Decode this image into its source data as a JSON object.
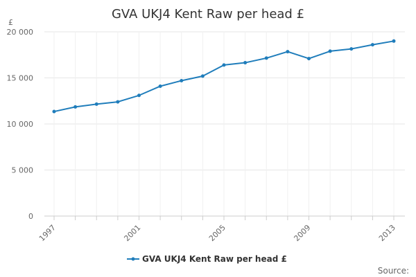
{
  "chart_data": {
    "type": "line",
    "title": "GVA UKJ4 Kent Raw per head £",
    "unit_label": "£",
    "xlabel": "",
    "ylabel": "",
    "x": [
      1997,
      1998,
      1999,
      2000,
      2001,
      2002,
      2003,
      2004,
      2005,
      2006,
      2007,
      2008,
      2009,
      2010,
      2011,
      2012,
      2013
    ],
    "x_ticks": [
      "1997",
      "2001",
      "2005",
      "2009",
      "2013"
    ],
    "y_ticks": [
      "0",
      "5 000",
      "10 000",
      "15 000",
      "20 000"
    ],
    "ylim": [
      0,
      20000
    ],
    "grid": true,
    "series": [
      {
        "name": "GVA UKJ4 Kent Raw per head £",
        "color": "#1f7dbb",
        "values": [
          11350,
          11850,
          12150,
          12400,
          13100,
          14100,
          14700,
          15200,
          16400,
          16650,
          17150,
          17850,
          17100,
          17900,
          18150,
          18600,
          19000
        ]
      }
    ],
    "legend": "bottom-center",
    "source_label": "Source:"
  }
}
